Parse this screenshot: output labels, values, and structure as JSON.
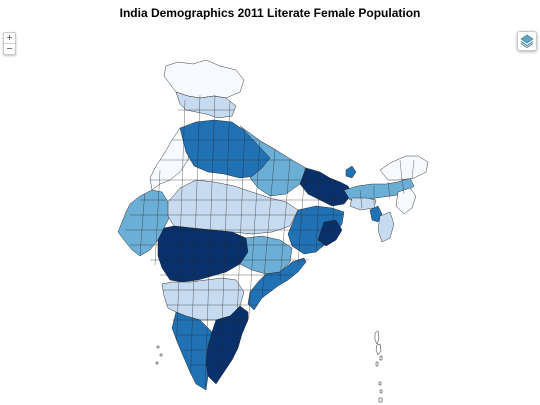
{
  "title": "India Demographics 2011 Literate Female Population",
  "controls": {
    "zoom_in": "+",
    "zoom_out": "−",
    "layers_icon": "layers-icon"
  },
  "colors": {
    "scale": [
      "#f7fbff",
      "#c6dbef",
      "#6baed6",
      "#2171b5",
      "#08306b"
    ],
    "outline": "#222222"
  }
}
